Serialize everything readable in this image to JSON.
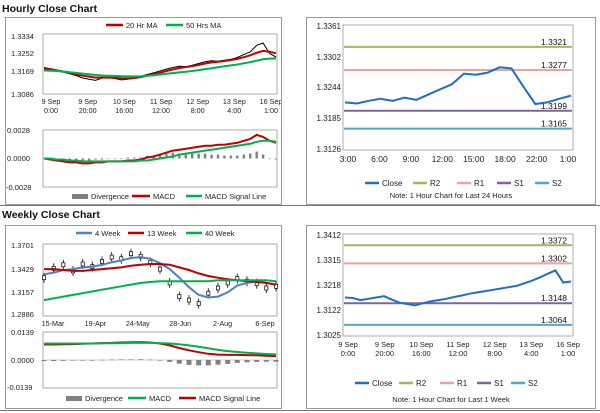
{
  "hourly": {
    "title": "Hourly Close Chart",
    "price_legend": [
      {
        "label": "20 Hr MA",
        "color": "#c00000"
      },
      {
        "label": "50 Hrs MA",
        "color": "#00b050"
      }
    ],
    "macd_legend": [
      {
        "label": "Divergence",
        "color": "#808080"
      },
      {
        "label": "MACD",
        "color": "#c00000"
      },
      {
        "label": "MACD Signal Line",
        "color": "#00b050"
      }
    ]
  },
  "weekly": {
    "title": "Weekly Close Chart",
    "price_legend": [
      {
        "label": "4 Week",
        "color": "#4f81bd"
      },
      {
        "label": "13 Week",
        "color": "#c00000"
      },
      {
        "label": "40 Week",
        "color": "#00b050"
      }
    ],
    "macd_legend": [
      {
        "label": "Divergence",
        "color": "#808080"
      },
      {
        "label": "MACD",
        "color": "#c00000"
      },
      {
        "label": "MACD Signal Line",
        "color": "#00b050"
      }
    ]
  },
  "chart_data": [
    {
      "id": "hourly_price",
      "type": "line",
      "title": "Hourly Close Chart",
      "yticks": [
        "1.3334",
        "1.3252",
        "1.3169",
        "1.3086"
      ],
      "ylim": [
        1.3086,
        1.3334
      ],
      "xticks": [
        "9 Sep\n0:00",
        "9 Sep\n20:00",
        "10 Sep\n16:00",
        "11 Sep\n12:00",
        "12 Sep\n8:00",
        "13 Sep\n4:00",
        "16 Sep\n1:00"
      ],
      "series": [
        {
          "name": "Close",
          "color": "#000000",
          "values": [
            1.3195,
            1.319,
            1.318,
            1.3175,
            1.3168,
            1.316,
            1.315,
            1.3145,
            1.314,
            1.315,
            1.3152,
            1.3148,
            1.3142,
            1.3145,
            1.315,
            1.3158,
            1.3165,
            1.3172,
            1.318,
            1.3188,
            1.3195,
            1.32,
            1.3198,
            1.3205,
            1.3212,
            1.322,
            1.3224,
            1.3222,
            1.3226,
            1.323,
            1.3238,
            1.325,
            1.3262,
            1.329,
            1.33,
            1.3255,
            1.324
          ]
        },
        {
          "name": "20 Hr MA",
          "color": "#c00000",
          "values": [
            1.319,
            1.3188,
            1.3183,
            1.3178,
            1.3172,
            1.3165,
            1.316,
            1.3156,
            1.3152,
            1.3152,
            1.3152,
            1.3151,
            1.3149,
            1.3148,
            1.315,
            1.3154,
            1.316,
            1.3166,
            1.3173,
            1.318,
            1.3187,
            1.3193,
            1.3197,
            1.3201,
            1.3206,
            1.3212,
            1.3217,
            1.322,
            1.3223,
            1.3227,
            1.3232,
            1.3239,
            1.3247,
            1.3258,
            1.3266,
            1.3262,
            1.3256
          ]
        },
        {
          "name": "50 Hrs MA",
          "color": "#00b050",
          "values": [
            1.3182,
            1.3181,
            1.318,
            1.3178,
            1.3175,
            1.3172,
            1.3169,
            1.3166,
            1.3163,
            1.3161,
            1.316,
            1.3159,
            1.3158,
            1.3157,
            1.3157,
            1.3158,
            1.316,
            1.3162,
            1.3165,
            1.3168,
            1.3171,
            1.3174,
            1.3177,
            1.318,
            1.3184,
            1.3188,
            1.3192,
            1.3196,
            1.32,
            1.3204,
            1.3208,
            1.3213,
            1.3218,
            1.3224,
            1.323,
            1.3233,
            1.3234
          ]
        }
      ]
    },
    {
      "id": "hourly_macd",
      "type": "line",
      "yticks": [
        "0.0028",
        "0.0000",
        "-0.0028"
      ],
      "ylim": [
        -0.0028,
        0.0028
      ],
      "series": [
        {
          "name": "MACD",
          "color": "#c00000",
          "values": [
            0.0,
            -0.0001,
            -0.0002,
            -0.0003,
            -0.0004,
            -0.0004,
            -0.0005,
            -0.0005,
            -0.0004,
            -0.0004,
            -0.0003,
            -0.0003,
            -0.0003,
            -0.0002,
            -0.0002,
            -0.0001,
            0.0001,
            0.0002,
            0.0004,
            0.0006,
            0.0008,
            0.0009,
            0.001,
            0.0011,
            0.0012,
            0.0013,
            0.0013,
            0.0014,
            0.0014,
            0.0015,
            0.0016,
            0.0018,
            0.002,
            0.0024,
            0.0022,
            0.0018,
            0.0016
          ]
        },
        {
          "name": "MACD Signal Line",
          "color": "#00b050",
          "values": [
            0.0,
            0.0,
            -0.0001,
            -0.0001,
            -0.0002,
            -0.0002,
            -0.0003,
            -0.0003,
            -0.0003,
            -0.0003,
            -0.0003,
            -0.0003,
            -0.0003,
            -0.0003,
            -0.0003,
            -0.0002,
            -0.0002,
            -0.0001,
            0.0,
            0.0001,
            0.0002,
            0.0004,
            0.0005,
            0.0006,
            0.0007,
            0.0008,
            0.0009,
            0.001,
            0.0011,
            0.0012,
            0.0013,
            0.0014,
            0.0015,
            0.0017,
            0.0018,
            0.0018,
            0.0017
          ]
        },
        {
          "name": "Divergence",
          "color": "#808080",
          "bars": true,
          "values": [
            0.0,
            -0.0001,
            -0.0001,
            -0.0002,
            -0.0002,
            -0.0002,
            -0.0002,
            -0.0002,
            -0.0001,
            -0.0001,
            0.0,
            0.0,
            0.0,
            0.0001,
            0.0001,
            0.0001,
            0.0003,
            0.0003,
            0.0004,
            0.0005,
            0.0006,
            0.0005,
            0.0005,
            0.0005,
            0.0005,
            0.0005,
            0.0004,
            0.0004,
            0.0003,
            0.0003,
            0.0003,
            0.0004,
            0.0005,
            0.0007,
            0.0004,
            0.0,
            -0.0001
          ]
        }
      ]
    },
    {
      "id": "hourly_levels",
      "type": "line",
      "yticks": [
        "1.3361",
        "1.3302",
        "1.3244",
        "1.3185",
        "1.3126"
      ],
      "ylim": [
        1.3126,
        1.3361
      ],
      "xticks": [
        "3:00",
        "6:00",
        "9:00",
        "12:00",
        "15:00",
        "18:00",
        "22:00",
        "1:00"
      ],
      "levels": [
        {
          "name": "R2",
          "value": 1.3321,
          "label": "1.3321",
          "color": "#9bbb59"
        },
        {
          "name": "R1",
          "value": 1.3277,
          "label": "1.3277",
          "color": "#e6a5a3"
        },
        {
          "name": "S1",
          "value": 1.3199,
          "label": "1.3199",
          "color": "#8064a2"
        },
        {
          "name": "S2",
          "value": 1.3165,
          "label": "1.3165",
          "color": "#4bacc6"
        }
      ],
      "series": [
        {
          "name": "Close",
          "color": "#1f6fbf",
          "values": [
            1.3215,
            1.3213,
            1.3218,
            1.3222,
            1.3218,
            1.3224,
            1.322,
            1.323,
            1.324,
            1.325,
            1.327,
            1.3268,
            1.3272,
            1.3282,
            1.328,
            1.3245,
            1.3212,
            1.3215,
            1.3222,
            1.3228
          ]
        }
      ],
      "legend": [
        "Close",
        "R2",
        "R1",
        "S1",
        "S2"
      ],
      "note": "Note: 1 Hour Chart for Last 24 Hours"
    },
    {
      "id": "weekly_price",
      "type": "line",
      "title": "Weekly Close Chart",
      "yticks": [
        "1.3701",
        "1.3429",
        "1.3157",
        "1.2886"
      ],
      "ylim": [
        1.2886,
        1.3701
      ],
      "xticks": [
        "15-Mar",
        "19-Apr",
        "24-May",
        "28-Jun",
        "2-Aug",
        "6-Sep"
      ],
      "series": [
        {
          "name": "Close",
          "color": "#000000",
          "values": [
            1.332,
            1.343,
            1.347,
            1.34,
            1.348,
            1.345,
            1.351,
            1.356,
            1.354,
            1.36,
            1.357,
            1.35,
            1.342,
            1.326,
            1.31,
            1.306,
            1.302,
            1.314,
            1.32,
            1.326,
            1.331,
            1.328,
            1.325,
            1.32,
            1.322
          ]
        },
        {
          "name": "4 Week",
          "color": "#4f81bd",
          "values": [
            1.336,
            1.338,
            1.341,
            1.342,
            1.344,
            1.345,
            1.347,
            1.35,
            1.352,
            1.355,
            1.356,
            1.354,
            1.349,
            1.342,
            1.332,
            1.321,
            1.312,
            1.309,
            1.31,
            1.315,
            1.323,
            1.326,
            1.328,
            1.326,
            1.324
          ]
        },
        {
          "name": "13 Week",
          "color": "#c00000",
          "values": [
            1.342,
            1.342,
            1.341,
            1.34,
            1.34,
            1.341,
            1.342,
            1.343,
            1.344,
            1.346,
            1.347,
            1.348,
            1.348,
            1.347,
            1.344,
            1.341,
            1.337,
            1.334,
            1.332,
            1.33,
            1.329,
            1.328,
            1.327,
            1.326,
            1.324
          ]
        },
        {
          "name": "40 Week",
          "color": "#00b050",
          "values": [
            1.306,
            1.308,
            1.31,
            1.312,
            1.314,
            1.316,
            1.318,
            1.32,
            1.322,
            1.324,
            1.326,
            1.327,
            1.328,
            1.328,
            1.328,
            1.328,
            1.328,
            1.328,
            1.329,
            1.329,
            1.329,
            1.329,
            1.329,
            1.329,
            1.328
          ]
        }
      ]
    },
    {
      "id": "weekly_macd",
      "type": "line",
      "yticks": [
        "0.0139",
        "0.0000",
        "-0.0139"
      ],
      "ylim": [
        -0.0139,
        0.0139
      ],
      "series": [
        {
          "name": "MACD",
          "color": "#c00000",
          "values": [
            0.008,
            0.008,
            0.0081,
            0.0082,
            0.0084,
            0.0085,
            0.0087,
            0.0088,
            0.009,
            0.0091,
            0.0092,
            0.009,
            0.0085,
            0.0075,
            0.0062,
            0.005,
            0.004,
            0.0032,
            0.0028,
            0.0026,
            0.0026,
            0.0025,
            0.0024,
            0.0022,
            0.002
          ]
        },
        {
          "name": "MACD Signal Line",
          "color": "#00b050",
          "values": [
            0.0085,
            0.0085,
            0.0085,
            0.0085,
            0.0085,
            0.0085,
            0.0086,
            0.0086,
            0.0087,
            0.0088,
            0.0088,
            0.0088,
            0.0087,
            0.0085,
            0.0081,
            0.0075,
            0.0068,
            0.006,
            0.0052,
            0.0046,
            0.0041,
            0.0037,
            0.0034,
            0.0031,
            0.0029
          ]
        },
        {
          "name": "Divergence",
          "color": "#808080",
          "bars": true,
          "values": [
            -0.0005,
            -0.0005,
            -0.0004,
            -0.0003,
            -0.0001,
            0.0,
            0.0001,
            0.0002,
            0.0003,
            0.0003,
            0.0004,
            0.0002,
            -0.0002,
            -0.001,
            -0.0019,
            -0.0025,
            -0.0028,
            -0.0028,
            -0.0024,
            -0.002,
            -0.0015,
            -0.0012,
            -0.001,
            -0.0009,
            -0.0009
          ]
        }
      ]
    },
    {
      "id": "weekly_levels",
      "type": "line",
      "yticks": [
        "1.3412",
        "1.3315",
        "1.3218",
        "1.3122",
        "1.3025"
      ],
      "ylim": [
        1.3025,
        1.3412
      ],
      "xticks": [
        "9 Sep\n0:00",
        "9 Sep\n20:00",
        "10 Sep\n16:00",
        "11 Sep\n12:00",
        "12 Sep\n8:00",
        "13 Sep\n4:00",
        "16 Sep\n1:00"
      ],
      "levels": [
        {
          "name": "R2",
          "value": 1.3372,
          "label": "1.3372",
          "color": "#9bbb59"
        },
        {
          "name": "R1",
          "value": 1.3302,
          "label": "1.3302",
          "color": "#e6a5a3"
        },
        {
          "name": "S1",
          "value": 1.3148,
          "label": "1.3148",
          "color": "#8064a2"
        },
        {
          "name": "S2",
          "value": 1.3064,
          "label": "1.3064",
          "color": "#4bacc6"
        }
      ],
      "series": [
        {
          "name": "Close",
          "color": "#1f6fbf",
          "values": [
            1.317,
            1.3168,
            1.316,
            1.3165,
            1.317,
            1.3175,
            1.3162,
            1.315,
            1.3145,
            1.314,
            1.3148,
            1.3155,
            1.316,
            1.3165,
            1.3172,
            1.3178,
            1.3185,
            1.319,
            1.3195,
            1.32,
            1.3205,
            1.321,
            1.3215,
            1.3225,
            1.3235,
            1.3248,
            1.3262,
            1.3275,
            1.3228,
            1.3232
          ]
        }
      ],
      "legend": [
        "Close",
        "R2",
        "R1",
        "S1",
        "S2"
      ],
      "note": "Note: 1 Hour Chart for Last 1 Week"
    }
  ]
}
